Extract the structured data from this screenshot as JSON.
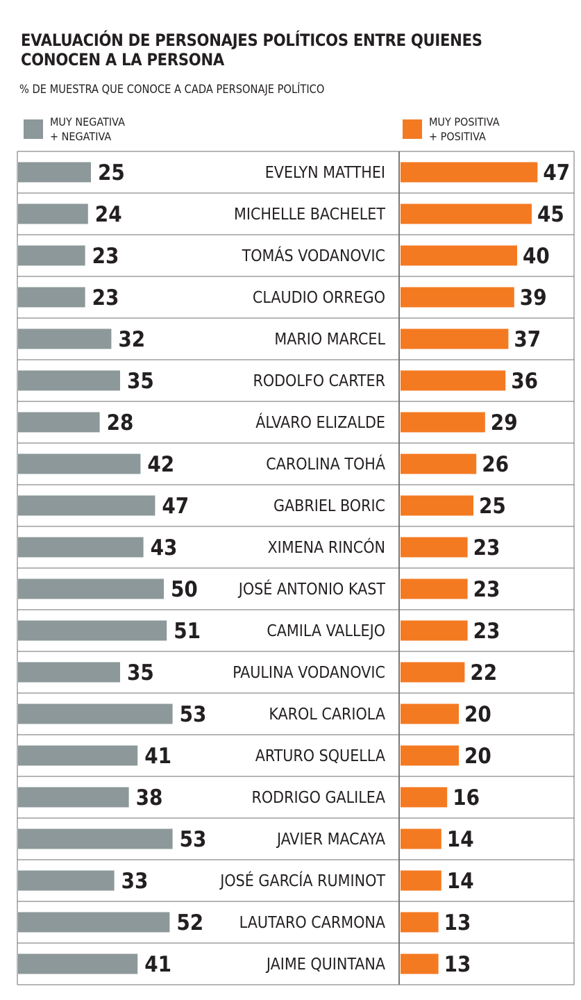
{
  "title_line1": "EVALUACIÓN DE PERSONAJES POLÍTICOS ENTRE QUIENES",
  "title_line2": "CONOCEN A LA PERSONA",
  "subtitle": "% DE MUESTRA QUE CONOCE A CADA PERSONAJE POLÍTICO",
  "legend": {
    "negative": {
      "line1": "MUY NEGATIVA",
      "line2": "+ NEGATIVA",
      "color": "#8c9899"
    },
    "positive": {
      "line1": "MUY POSITIVA",
      "line2": "+ POSITIVA",
      "color": "#f47a22"
    }
  },
  "chart_data": {
    "type": "bar",
    "title": "EVALUACIÓN DE PERSONAJES POLÍTICOS ENTRE QUIENES CONOCEN A LA PERSONA",
    "subtitle": "% DE MUESTRA QUE CONOCE A CADA PERSONAJE POLÍTICO",
    "orientation": "horizontal-diverging",
    "categories": [
      "EVELYN MATTHEI",
      "MICHELLE BACHELET",
      "TOMÁS VODANOVIC",
      "CLAUDIO ORREGO",
      "MARIO MARCEL",
      "RODOLFO CARTER",
      "ÁLVARO ELIZALDE",
      "CAROLINA TOHÁ",
      "GABRIEL BORIC",
      "XIMENA RINCÓN",
      "JOSÉ ANTONIO KAST",
      "CAMILA VALLEJO",
      "PAULINA VODANOVIC",
      "KAROL CARIOLA",
      "ARTURO SQUELLA",
      "RODRIGO GALILEA",
      "JAVIER MACAYA",
      "JOSÉ GARCÍA RUMINOT",
      "LAUTARO CARMONA",
      "JAIME QUINTANA"
    ],
    "series": [
      {
        "name": "MUY NEGATIVA + NEGATIVA",
        "color": "#8c9899",
        "values": [
          25,
          24,
          23,
          23,
          32,
          35,
          28,
          42,
          47,
          43,
          50,
          51,
          35,
          53,
          41,
          38,
          53,
          33,
          52,
          41
        ]
      },
      {
        "name": "MUY POSITIVA + POSITIVA",
        "color": "#f47a22",
        "values": [
          47,
          45,
          40,
          39,
          37,
          36,
          29,
          26,
          25,
          23,
          23,
          23,
          22,
          20,
          20,
          16,
          14,
          14,
          13,
          13
        ]
      }
    ],
    "legend": "top",
    "grid": false
  }
}
